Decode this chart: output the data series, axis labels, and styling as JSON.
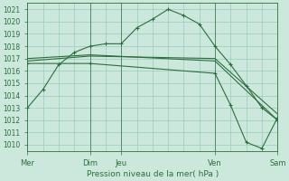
{
  "bg_color": "#cce8dc",
  "grid_color": "#99ccbb",
  "line_color": "#2d6e3e",
  "xlabel": "Pression niveau de la mer( hPa )",
  "xlim": [
    0,
    96
  ],
  "ylim": [
    1009.5,
    1021.5
  ],
  "yticks": [
    1010,
    1011,
    1012,
    1013,
    1014,
    1015,
    1016,
    1017,
    1018,
    1019,
    1020,
    1021
  ],
  "xtick_positions": [
    0,
    24,
    36,
    72,
    96
  ],
  "xtick_labels": [
    "Mer",
    "Dim",
    "Jeu",
    "Ven",
    "Sam"
  ],
  "vline_positions": [
    24,
    36,
    72,
    96
  ],
  "series0_x": [
    0,
    6,
    12,
    18,
    24,
    30,
    36,
    42,
    48,
    54,
    60,
    66,
    72,
    78,
    84,
    90,
    96
  ],
  "series0_y": [
    1013.0,
    1014.5,
    1016.5,
    1017.5,
    1018.0,
    1018.2,
    1018.2,
    1019.5,
    1020.2,
    1021.0,
    1020.5,
    1019.8,
    1018.0,
    1016.5,
    1014.8,
    1013.0,
    1012.0
  ],
  "series1_x": [
    0,
    24,
    72,
    96
  ],
  "series1_y": [
    1016.8,
    1017.2,
    1017.0,
    1012.5
  ],
  "series2_x": [
    0,
    24,
    72,
    96
  ],
  "series2_y": [
    1017.0,
    1017.3,
    1016.8,
    1012.0
  ],
  "series3_x": [
    0,
    24,
    72,
    78,
    84,
    90,
    96
  ],
  "series3_y": [
    1016.6,
    1016.6,
    1015.8,
    1013.2,
    1010.2,
    1009.7,
    1012.2
  ],
  "figsize": [
    3.2,
    2.0
  ],
  "dpi": 100
}
